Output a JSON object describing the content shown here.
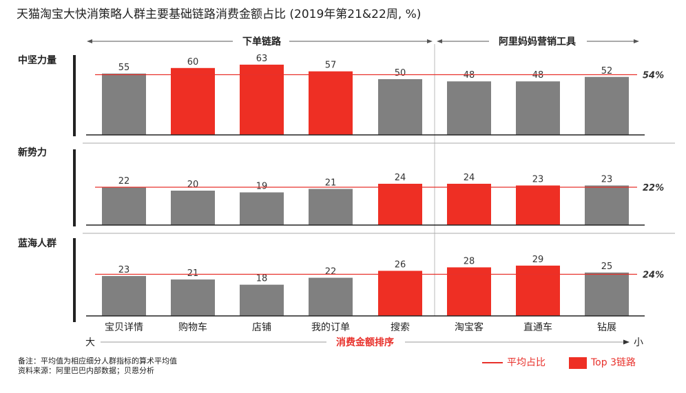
{
  "title": "天猫淘宝大快消策略人群主要基础链路消费金额占比 (2019年第21&22周, %)",
  "colors": {
    "highlight": "#ee2f24",
    "normal": "#808080",
    "avg_line": "#e8302a",
    "axis": "#222222",
    "label_red": "#e8302a"
  },
  "chart_data": {
    "type": "bar",
    "title": "天猫淘宝大快消策略人群主要基础链路消费金额占比 (2019年第21&22周, %)",
    "categories": [
      "宝贝详情",
      "购物车",
      "店铺",
      "我的订单",
      "搜索",
      "淘宝客",
      "直通车",
      "钻展"
    ],
    "category_groups": [
      {
        "label": "下单链路",
        "categories": [
          "宝贝详情",
          "购物车",
          "店铺",
          "我的订单",
          "搜索"
        ]
      },
      {
        "label": "阿里妈妈营销工具",
        "categories": [
          "淘宝客",
          "直通车",
          "钻展"
        ]
      }
    ],
    "series": [
      {
        "name": "中坚力量",
        "values": [
          55,
          60,
          63,
          57,
          50,
          48,
          48,
          52
        ],
        "average": 54,
        "average_label": "54%",
        "top3": [
          false,
          true,
          true,
          true,
          false,
          false,
          false,
          false
        ]
      },
      {
        "name": "新势力",
        "values": [
          22,
          20,
          19,
          21,
          24,
          24,
          23,
          23
        ],
        "average": 22,
        "average_label": "22%",
        "top3": [
          false,
          false,
          false,
          false,
          true,
          true,
          true,
          false
        ]
      },
      {
        "name": "蓝海人群",
        "values": [
          23,
          21,
          18,
          22,
          26,
          28,
          29,
          25
        ],
        "average": 24,
        "average_label": "24%",
        "top3": [
          false,
          false,
          false,
          false,
          true,
          true,
          true,
          false
        ]
      }
    ],
    "xaxis": {
      "left_label": "大",
      "right_label": "小",
      "center_label": "消费金额排序"
    },
    "legend": [
      {
        "type": "line",
        "label": "平均占比"
      },
      {
        "type": "box",
        "label": "Top 3链路"
      }
    ],
    "legend_position": "bottom-right",
    "grid": false
  },
  "notes": [
    "备注：平均值为相应细分人群指标的算术平均值",
    "资料来源：阿里巴巴内部数据；贝恩分析"
  ]
}
